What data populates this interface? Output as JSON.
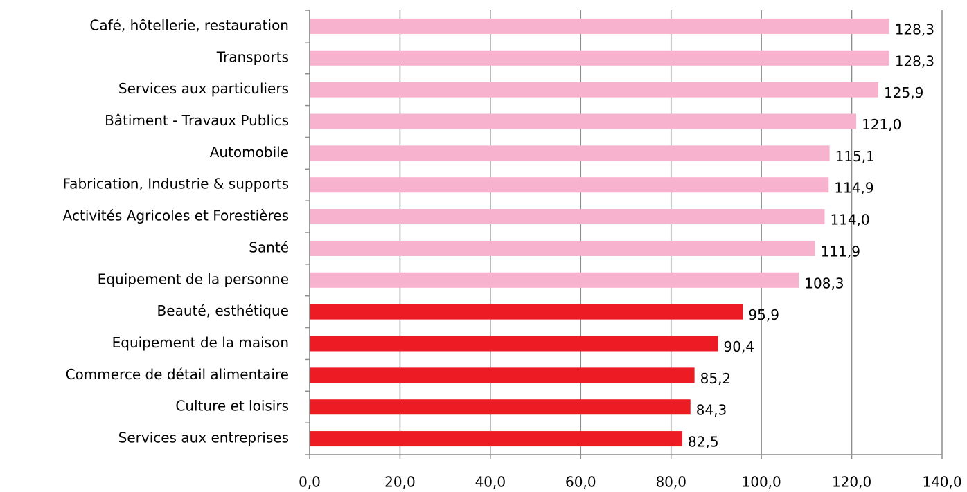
{
  "chart_data": {
    "type": "bar",
    "orientation": "horizontal",
    "categories": [
      "Café, hôtellerie, restauration",
      "Transports",
      "Services aux particuliers",
      "Bâtiment - Travaux Publics",
      "Automobile",
      "Fabrication, Industrie & supports",
      "Activités Agricoles et Forestières",
      "Santé",
      "Equipement de la personne",
      "Beauté, esthétique",
      "Equipement de la maison",
      "Commerce de détail alimentaire",
      "Culture et loisirs",
      "Services aux entreprises"
    ],
    "values": [
      128.3,
      128.3,
      125.9,
      121.0,
      115.1,
      114.9,
      114.0,
      111.9,
      108.3,
      95.9,
      90.4,
      85.2,
      84.3,
      82.5
    ],
    "value_labels": [
      "128,3",
      "128,3",
      "125,9",
      "121,0",
      "115,1",
      "114,9",
      "114,0",
      "111,9",
      "108,3",
      "95,9",
      "90,4",
      "85,2",
      "84,3",
      "82,5"
    ],
    "colors": [
      "#f7b2cd",
      "#f7b2cd",
      "#f7b2cd",
      "#f7b2cd",
      "#f7b2cd",
      "#f7b2cd",
      "#f7b2cd",
      "#f7b2cd",
      "#f7b2cd",
      "#ed1c24",
      "#ed1c24",
      "#ed1c24",
      "#ed1c24",
      "#ed1c24"
    ],
    "xlim": [
      0,
      140
    ],
    "xticks": [
      {
        "value": 0,
        "label": "0,0"
      },
      {
        "value": 20,
        "label": "20,0"
      },
      {
        "value": 40,
        "label": "40,0"
      },
      {
        "value": 60,
        "label": "60,0"
      },
      {
        "value": 80,
        "label": "80,0"
      },
      {
        "value": 100,
        "label": "100,0"
      },
      {
        "value": 120,
        "label": "120,0"
      },
      {
        "value": 140,
        "label": "140,0"
      }
    ],
    "grid": true
  }
}
